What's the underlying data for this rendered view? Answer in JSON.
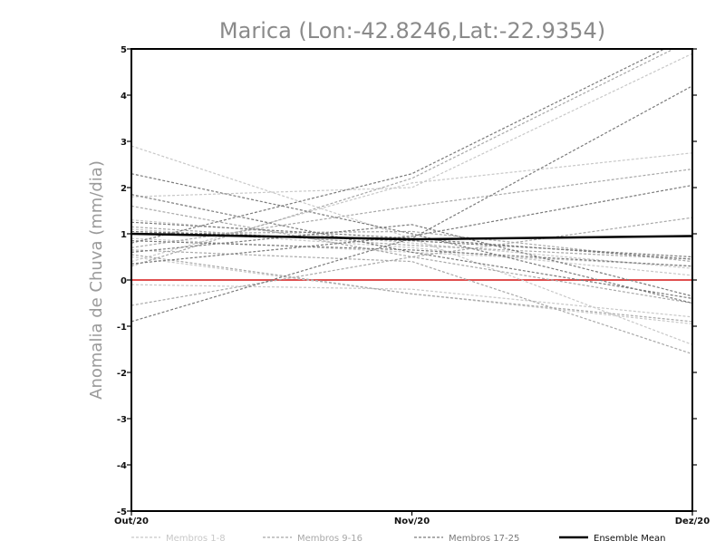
{
  "chart_data": {
    "type": "line",
    "title": "Marica (Lon:-42.8246,Lat:-22.9354)",
    "xlabel": "",
    "ylabel": "Anomalia de Chuva (mm/dia)",
    "categories": [
      "Out/20",
      "Nov/20",
      "Dez/20"
    ],
    "ylim": [
      -5,
      5
    ],
    "yticks": [
      -5,
      -4,
      -3,
      -2,
      -1,
      0,
      1,
      2,
      3,
      4,
      5
    ],
    "reference_value": 0,
    "colors": {
      "members_1_8": "#c8c8c8",
      "members_9_16": "#a8a8a8",
      "members_17_25": "#7a7a7a",
      "ensemble_mean": "#000000",
      "zero_line": "#e05050"
    },
    "legend": [
      {
        "label": "Membros 1-8",
        "group": "members_1_8"
      },
      {
        "label": "Membros 9-16",
        "group": "members_9_16"
      },
      {
        "label": "Membros 17-25",
        "group": "members_17_25"
      },
      {
        "label": "Ensemble Mean",
        "group": "ensemble_mean"
      }
    ],
    "series": [
      {
        "name": "Membro 1",
        "group": "members_1_8",
        "values": [
          2.9,
          0.9,
          -1.4
        ]
      },
      {
        "name": "Membro 2",
        "group": "members_1_8",
        "values": [
          1.8,
          2.0,
          4.9
        ]
      },
      {
        "name": "Membro 3",
        "group": "members_1_8",
        "values": [
          0.4,
          2.1,
          2.75
        ]
      },
      {
        "name": "Membro 4",
        "group": "members_1_8",
        "values": [
          1.1,
          0.7,
          0.1
        ]
      },
      {
        "name": "Membro 5",
        "group": "members_1_8",
        "values": [
          0.5,
          -0.3,
          -0.95
        ]
      },
      {
        "name": "Membro 6",
        "group": "members_1_8",
        "values": [
          -0.1,
          -0.2,
          -0.8
        ]
      },
      {
        "name": "Membro 7",
        "group": "members_1_8",
        "values": [
          0.9,
          0.6,
          0.3
        ]
      },
      {
        "name": "Membro 8",
        "group": "members_1_8",
        "values": [
          1.3,
          0.8,
          0.25
        ]
      },
      {
        "name": "Membro 9",
        "group": "members_9_16",
        "values": [
          1.6,
          0.5,
          -0.5
        ]
      },
      {
        "name": "Membro 10",
        "group": "members_9_16",
        "values": [
          0.7,
          1.6,
          2.4
        ]
      },
      {
        "name": "Membro 11",
        "group": "members_9_16",
        "values": [
          0.3,
          2.2,
          5.2
        ]
      },
      {
        "name": "Membro 12",
        "group": "members_9_16",
        "values": [
          -0.55,
          0.5,
          1.35
        ]
      },
      {
        "name": "Membro 13",
        "group": "members_9_16",
        "values": [
          0.65,
          0.4,
          -1.6
        ]
      },
      {
        "name": "Membro 14",
        "group": "members_9_16",
        "values": [
          1.0,
          1.05,
          0.4
        ]
      },
      {
        "name": "Membro 15",
        "group": "members_9_16",
        "values": [
          0.55,
          -0.3,
          -0.9
        ]
      },
      {
        "name": "Membro 16",
        "group": "members_9_16",
        "values": [
          1.15,
          0.75,
          0.45
        ]
      },
      {
        "name": "Membro 17",
        "group": "members_17_25",
        "values": [
          2.3,
          1.0,
          -0.5
        ]
      },
      {
        "name": "Membro 18",
        "group": "members_17_25",
        "values": [
          0.8,
          2.3,
          5.3
        ]
      },
      {
        "name": "Membro 19",
        "group": "members_17_25",
        "values": [
          -0.9,
          0.9,
          4.2
        ]
      },
      {
        "name": "Membro 20",
        "group": "members_17_25",
        "values": [
          1.85,
          0.6,
          -0.4
        ]
      },
      {
        "name": "Membro 21",
        "group": "members_17_25",
        "values": [
          0.35,
          0.95,
          2.05
        ]
      },
      {
        "name": "Membro 22",
        "group": "members_17_25",
        "values": [
          1.25,
          0.9,
          0.45
        ]
      },
      {
        "name": "Membro 23",
        "group": "members_17_25",
        "values": [
          0.85,
          0.65,
          0.3
        ]
      },
      {
        "name": "Membro 24",
        "group": "members_17_25",
        "values": [
          1.05,
          0.85,
          0.5
        ]
      },
      {
        "name": "Membro 25",
        "group": "members_17_25",
        "values": [
          0.6,
          1.2,
          -0.35
        ]
      },
      {
        "name": "Ensemble Mean",
        "group": "ensemble_mean",
        "values": [
          1.0,
          0.88,
          0.95
        ]
      }
    ]
  }
}
